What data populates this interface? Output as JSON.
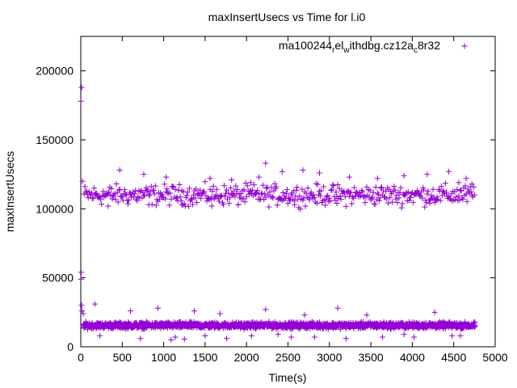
{
  "chart_data": {
    "type": "scatter",
    "title": "maxInsertUsecs vs Time for l.i0",
    "xlabel": "Time(s)",
    "ylabel": "maxInsertUsecs",
    "xlim": [
      0,
      5000
    ],
    "ylim": [
      0,
      225000
    ],
    "xticks": [
      0,
      500,
      1000,
      1500,
      2000,
      2500,
      3000,
      3500,
      4000,
      4500,
      5000
    ],
    "yticks": [
      0,
      50000,
      100000,
      150000,
      200000
    ],
    "grid": false,
    "legend": {
      "position": "top-right",
      "base": "ma100244",
      "s1": "r",
      "t1": "el",
      "s2": "w",
      "t2": "ithdbg.cz12a",
      "s3": "c",
      "t3": "8r32"
    },
    "marker": "+",
    "color": "#9400d3",
    "series": [
      {
        "spikes": [
          [
            2,
            178000
          ],
          [
            10,
            188000
          ],
          [
            20,
            120000
          ],
          [
            5,
            54000
          ],
          [
            2,
            49000
          ]
        ],
        "upper_band": {
          "x_start": 40,
          "x_end": 4750,
          "step": 10,
          "center": 110000,
          "spread": 6000,
          "outliers": [
            [
              470,
              128000
            ],
            [
              760,
              125000
            ],
            [
              1030,
              123000
            ],
            [
              1560,
              122000
            ],
            [
              2230,
              133000
            ],
            [
              2430,
              127000
            ],
            [
              2680,
              128000
            ],
            [
              2880,
              126000
            ],
            [
              3240,
              123000
            ],
            [
              3900,
              124000
            ],
            [
              4180,
              125000
            ],
            [
              4440,
              127000
            ],
            [
              4560,
              119000
            ],
            [
              4650,
              122000
            ],
            [
              4720,
              118000
            ],
            [
              1820,
              121000
            ],
            [
              2050,
              119000
            ],
            [
              2150,
              123000
            ],
            [
              3580,
              122000
            ],
            [
              330,
              102000
            ],
            [
              820,
              103000
            ],
            [
              1220,
              103000
            ],
            [
              1580,
              102000
            ],
            [
              1900,
              103000
            ],
            [
              2580,
              103000
            ],
            [
              3090,
              104000
            ]
          ]
        },
        "lower_band": {
          "x_start": 30,
          "x_end": 4760,
          "step": 3,
          "center": 15500,
          "spread": 1800,
          "outliers": [
            [
              10,
              30000
            ],
            [
              15,
              26000
            ],
            [
              30,
              24000
            ],
            [
              170,
              31000
            ],
            [
              600,
              26000
            ],
            [
              930,
              28000
            ],
            [
              1370,
              26000
            ],
            [
              2230,
              27000
            ],
            [
              3100,
              28000
            ],
            [
              4270,
              25000
            ],
            [
              1680,
              24000
            ],
            [
              3450,
              23000
            ],
            [
              2700,
              23000
            ],
            [
              230,
              8000
            ],
            [
              720,
              6000
            ],
            [
              1090,
              5000
            ],
            [
              1250,
              5500
            ],
            [
              1500,
              8000
            ],
            [
              1760,
              6000
            ],
            [
              2060,
              8000
            ],
            [
              2380,
              9000
            ],
            [
              2540,
              7000
            ],
            [
              2820,
              7000
            ],
            [
              3640,
              7000
            ],
            [
              3900,
              9000
            ],
            [
              4020,
              7000
            ],
            [
              4480,
              8000
            ],
            [
              4580,
              8000
            ],
            [
              1140,
              7000
            ],
            [
              3200,
              6000
            ]
          ]
        }
      }
    ]
  }
}
